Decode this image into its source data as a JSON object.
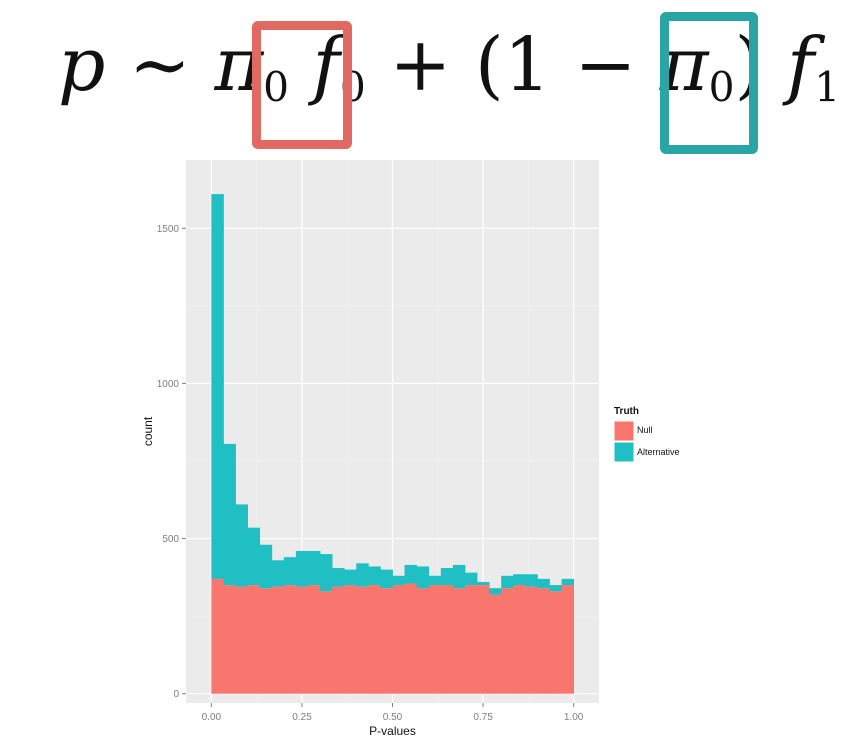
{
  "formula": {
    "p": "p",
    "tilde": "∼",
    "pi": "π",
    "zero": "0",
    "f": "f",
    "one": "1",
    "plus": "+",
    "lparen": "(",
    "minus": "−",
    "rparen": ")"
  },
  "colors": {
    "null": "#f8766d",
    "alternative": "#1fbfc4",
    "panel": "#ebebeb",
    "grid_major": "#ffffff",
    "box_f0": "#e06a63",
    "box_f1": "#2aa5a5"
  },
  "chart_data": {
    "type": "bar",
    "stacked": true,
    "histogram": true,
    "xlabel": "P-values",
    "ylabel": "count",
    "xlim": [
      -0.07,
      1.07
    ],
    "ylim": [
      -30,
      1720
    ],
    "x_ticks": [
      0,
      0.25,
      0.5,
      0.75,
      1
    ],
    "x_tick_labels": [
      "0.00",
      "0.25",
      "0.50",
      "0.75",
      "1.00"
    ],
    "y_ticks": [
      0,
      500,
      1000,
      1500
    ],
    "y_tick_labels": [
      "0",
      "500",
      "1000",
      "1500"
    ],
    "grid": true,
    "legend_position": "right",
    "legend_title": "Truth",
    "bin_edges": [
      0,
      0.0333,
      0.0667,
      0.1,
      0.1333,
      0.1667,
      0.2,
      0.2333,
      0.2667,
      0.3,
      0.3333,
      0.3667,
      0.4,
      0.4333,
      0.4667,
      0.5,
      0.5333,
      0.5667,
      0.6,
      0.6333,
      0.6667,
      0.7,
      0.7333,
      0.7667,
      0.8,
      0.8333,
      0.8667,
      0.9,
      0.9333,
      0.9667,
      1.0
    ],
    "series": [
      {
        "name": "Null",
        "values": [
          370,
          350,
          345,
          350,
          340,
          345,
          350,
          345,
          350,
          330,
          345,
          350,
          345,
          350,
          340,
          350,
          355,
          340,
          350,
          350,
          340,
          350,
          350,
          320,
          340,
          350,
          345,
          340,
          330,
          350
        ]
      },
      {
        "name": "Alternative",
        "values": [
          1240,
          455,
          265,
          185,
          140,
          85,
          90,
          115,
          110,
          120,
          60,
          50,
          75,
          60,
          60,
          30,
          60,
          70,
          30,
          55,
          75,
          40,
          10,
          20,
          40,
          35,
          40,
          30,
          20,
          20
        ]
      }
    ]
  }
}
